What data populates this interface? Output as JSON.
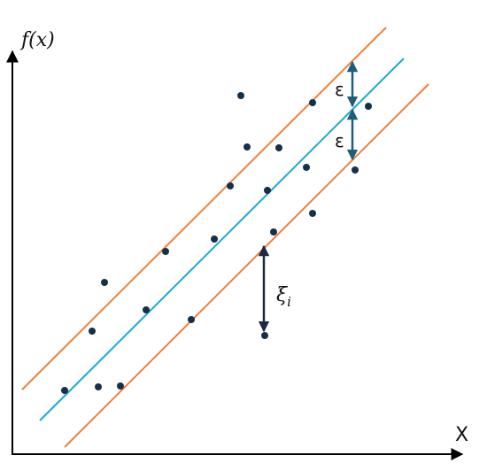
{
  "labels": {
    "y_axis": "f(x)",
    "x_axis": "X",
    "epsilon_upper": "ε",
    "epsilon_lower": "ε",
    "xi": "ξ",
    "xi_subscript": "i"
  }
}
